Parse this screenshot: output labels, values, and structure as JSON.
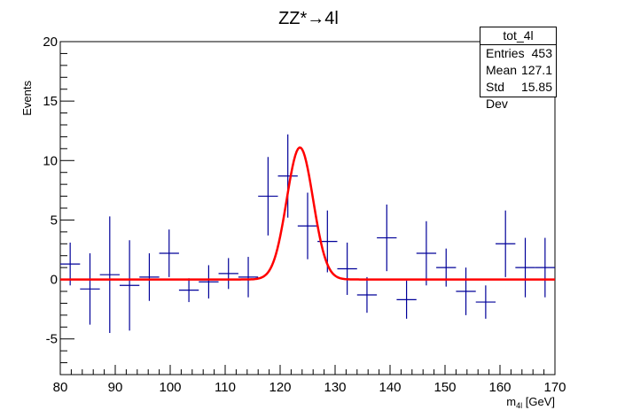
{
  "chart_data": {
    "type": "scatter",
    "title": "ZZ*→4l",
    "xlabel": "m_4l [GeV]",
    "ylabel": "Events",
    "xlim": [
      80,
      170
    ],
    "ylim": [
      -8,
      20
    ],
    "xticks": [
      80,
      90,
      100,
      110,
      120,
      130,
      140,
      150,
      160,
      170
    ],
    "yticks": [
      -5,
      0,
      5,
      10,
      15,
      20
    ],
    "bin_width": 3.6,
    "series": [
      {
        "style": "errorbar",
        "color": "#000099",
        "x": [
          81.8,
          85.4,
          89.0,
          92.6,
          96.2,
          99.8,
          103.4,
          107.0,
          110.6,
          114.2,
          117.8,
          121.4,
          125.0,
          128.6,
          132.2,
          135.8,
          139.4,
          143.0,
          146.6,
          150.2,
          153.8,
          157.4,
          161.0,
          164.6,
          168.2
        ],
        "y": [
          1.3,
          -0.8,
          0.4,
          -0.5,
          0.2,
          2.2,
          -0.9,
          -0.2,
          0.5,
          0.2,
          7.0,
          8.7,
          4.5,
          3.2,
          0.9,
          -1.3,
          3.5,
          -1.7,
          2.2,
          1.0,
          -1.0,
          -1.9,
          3.0,
          1.0,
          1.0
        ],
        "yerr": [
          1.8,
          3.0,
          4.9,
          3.8,
          2.0,
          2.0,
          1.0,
          1.4,
          1.3,
          1.7,
          3.3,
          3.5,
          2.8,
          2.6,
          2.2,
          1.5,
          2.8,
          1.6,
          2.7,
          1.6,
          2.0,
          1.4,
          2.8,
          2.5,
          2.5
        ]
      },
      {
        "style": "line",
        "color": "#ff0000",
        "model": "gaussian",
        "amplitude": 11.1,
        "mean": 123.6,
        "sigma": 2.4,
        "baseline": 0.0,
        "x_range": [
          80,
          170
        ]
      }
    ]
  },
  "stats_box": {
    "name": "tot_4l",
    "rows": [
      {
        "label": "Entries",
        "value": "453"
      },
      {
        "label": "Mean",
        "value": "127.1"
      },
      {
        "label": "Std Dev",
        "value": "15.85"
      }
    ]
  }
}
